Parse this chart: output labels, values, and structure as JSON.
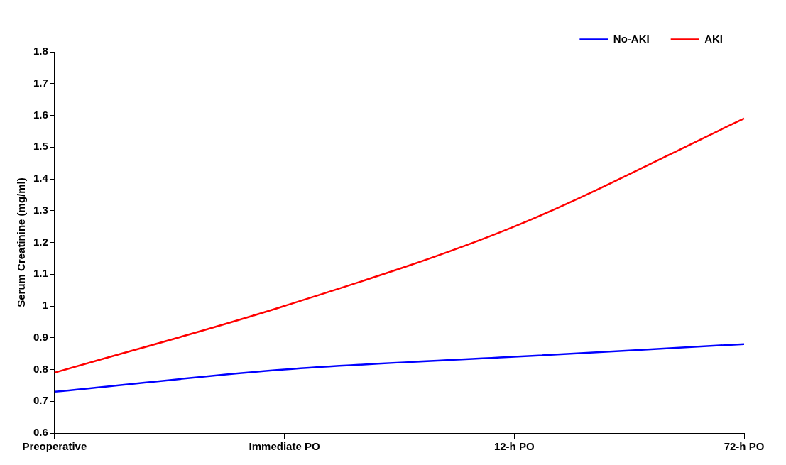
{
  "chart_data": {
    "type": "line",
    "categories": [
      "Preoperative",
      "Immediate PO",
      "12-h PO",
      "72-h PO"
    ],
    "ylabel": "Serum Creatinine (mg/ml)",
    "ylim": [
      0.6,
      1.8
    ],
    "yticks": [
      0.6,
      0.7,
      0.8,
      0.9,
      1,
      1.1,
      1.2,
      1.3,
      1.4,
      1.5,
      1.6,
      1.7,
      1.8
    ],
    "series": [
      {
        "name": "No-AKI",
        "color": "#0000ff",
        "values": [
          0.73,
          0.8,
          0.84,
          0.88
        ]
      },
      {
        "name": "AKI",
        "color": "#ff0000",
        "values": [
          0.79,
          1.0,
          1.25,
          1.59
        ]
      }
    ],
    "grid": false,
    "legend": "top right",
    "marker": "none",
    "line_style": "solid"
  }
}
